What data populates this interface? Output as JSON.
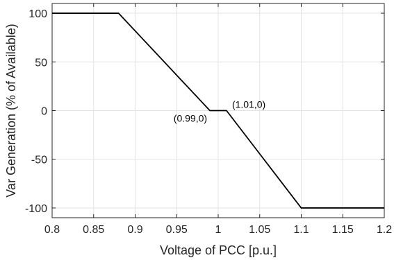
{
  "chart_data": {
    "type": "line",
    "title": "",
    "xlabel": "Voltage of PCC [p.u.]",
    "ylabel": "Var Generation (% of Available)",
    "xlim": [
      0.8,
      1.2
    ],
    "ylim": [
      -110,
      110
    ],
    "xticks": [
      0.8,
      0.85,
      0.9,
      0.95,
      1,
      1.05,
      1.1,
      1.15,
      1.2
    ],
    "xtick_labels": [
      "0.8",
      "0.85",
      "0.9",
      "0.95",
      "1",
      "1.05",
      "1.1",
      "1.15",
      "1.2"
    ],
    "yticks": [
      -100,
      -50,
      0,
      50,
      100
    ],
    "ytick_labels": [
      "-100",
      "-50",
      "0",
      "50",
      "100"
    ],
    "grid": true,
    "series": [
      {
        "x": [
          0.8,
          0.88,
          0.99,
          1.01,
          1.1,
          1.2
        ],
        "y": [
          100,
          100,
          0,
          0,
          -100,
          -100
        ],
        "color": "#000000"
      }
    ],
    "annotations": [
      {
        "text": "(0.99,0)",
        "x": 0.99,
        "y": 0,
        "anchor": "below-left"
      },
      {
        "text": "(1.01,0)",
        "x": 1.01,
        "y": 0,
        "anchor": "above-right"
      }
    ]
  }
}
